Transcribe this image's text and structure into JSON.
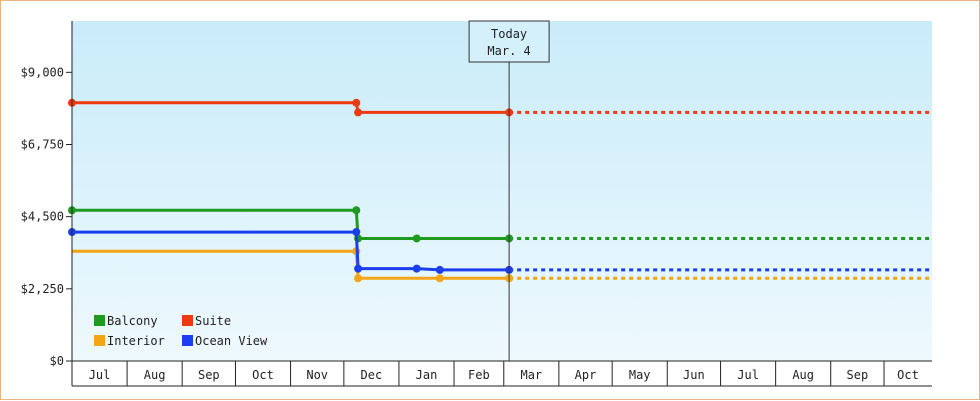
{
  "chart_data": {
    "type": "line",
    "y_ticks": [
      "$0",
      "$2,250",
      "$4,500",
      "$6,750",
      "$9,000"
    ],
    "y_tick_values": [
      0,
      2250,
      4500,
      6750,
      9000
    ],
    "ylim": [
      0,
      10600
    ],
    "x_ticks": [
      "Jul",
      "Aug",
      "Sep",
      "Oct",
      "Nov",
      "Dec",
      "Jan",
      "Feb",
      "Mar",
      "Apr",
      "May",
      "Jun",
      "Jul",
      "Aug",
      "Sep",
      "Oct"
    ],
    "x_tick_days": [
      0,
      31,
      62,
      92,
      123,
      153,
      184,
      215,
      243,
      274,
      304,
      335,
      365,
      396,
      427,
      457
    ],
    "x_range_days": [
      0,
      484
    ],
    "annotation": {
      "line1": "Today",
      "line2": "Mar. 4",
      "x_day": 246
    },
    "legend_position": "bottom-left",
    "grid": false,
    "series": [
      {
        "name": "Balcony",
        "color": "#1e9a1e",
        "points": [
          [
            0,
            4700
          ],
          [
            160,
            4700
          ],
          [
            161,
            3820
          ],
          [
            194,
            3820
          ],
          [
            246,
            3820
          ]
        ],
        "markers": [
          0,
          1,
          2,
          3,
          4
        ],
        "forecast_to_day": 484
      },
      {
        "name": "Suite",
        "color": "#ee3a10",
        "points": [
          [
            0,
            8050
          ],
          [
            160,
            8050
          ],
          [
            161,
            7750
          ],
          [
            246,
            7750
          ]
        ],
        "markers": [
          0,
          1,
          2,
          3
        ],
        "forecast_to_day": 484
      },
      {
        "name": "Interior",
        "color": "#f4a516",
        "points": [
          [
            0,
            3420
          ],
          [
            160,
            3420
          ],
          [
            161,
            2580
          ],
          [
            207,
            2580
          ],
          [
            246,
            2580
          ]
        ],
        "markers": [
          1,
          2,
          3,
          4
        ],
        "forecast_to_day": 484
      },
      {
        "name": "Ocean View",
        "color": "#1a3ef0",
        "points": [
          [
            0,
            4020
          ],
          [
            160,
            4020
          ],
          [
            161,
            2880
          ],
          [
            194,
            2880
          ],
          [
            207,
            2840
          ],
          [
            246,
            2840
          ]
        ],
        "markers": [
          0,
          1,
          2,
          3,
          4,
          5
        ],
        "forecast_to_day": 484
      }
    ]
  }
}
